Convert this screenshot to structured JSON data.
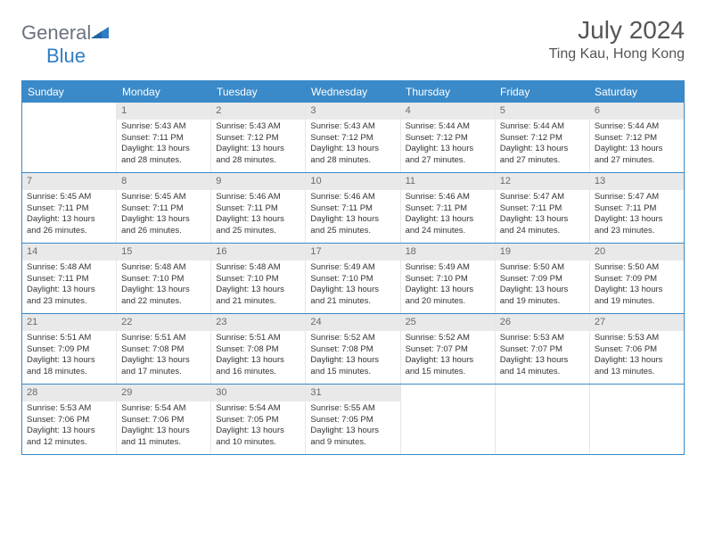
{
  "brand": {
    "text1": "General",
    "text2": "Blue"
  },
  "header": {
    "title": "July 2024",
    "location": "Ting Kau, Hong Kong"
  },
  "calendar": {
    "day_names": [
      "Sunday",
      "Monday",
      "Tuesday",
      "Wednesday",
      "Thursday",
      "Friday",
      "Saturday"
    ],
    "header_bg": "#3a8ac9",
    "header_fg": "#ffffff",
    "daynum_bg": "#e9e9e9",
    "weeks": [
      [
        {
          "day": "",
          "sunrise": "",
          "sunset": "",
          "daylight1": "",
          "daylight2": ""
        },
        {
          "day": "1",
          "sunrise": "Sunrise: 5:43 AM",
          "sunset": "Sunset: 7:11 PM",
          "daylight1": "Daylight: 13 hours",
          "daylight2": "and 28 minutes."
        },
        {
          "day": "2",
          "sunrise": "Sunrise: 5:43 AM",
          "sunset": "Sunset: 7:12 PM",
          "daylight1": "Daylight: 13 hours",
          "daylight2": "and 28 minutes."
        },
        {
          "day": "3",
          "sunrise": "Sunrise: 5:43 AM",
          "sunset": "Sunset: 7:12 PM",
          "daylight1": "Daylight: 13 hours",
          "daylight2": "and 28 minutes."
        },
        {
          "day": "4",
          "sunrise": "Sunrise: 5:44 AM",
          "sunset": "Sunset: 7:12 PM",
          "daylight1": "Daylight: 13 hours",
          "daylight2": "and 27 minutes."
        },
        {
          "day": "5",
          "sunrise": "Sunrise: 5:44 AM",
          "sunset": "Sunset: 7:12 PM",
          "daylight1": "Daylight: 13 hours",
          "daylight2": "and 27 minutes."
        },
        {
          "day": "6",
          "sunrise": "Sunrise: 5:44 AM",
          "sunset": "Sunset: 7:12 PM",
          "daylight1": "Daylight: 13 hours",
          "daylight2": "and 27 minutes."
        }
      ],
      [
        {
          "day": "7",
          "sunrise": "Sunrise: 5:45 AM",
          "sunset": "Sunset: 7:11 PM",
          "daylight1": "Daylight: 13 hours",
          "daylight2": "and 26 minutes."
        },
        {
          "day": "8",
          "sunrise": "Sunrise: 5:45 AM",
          "sunset": "Sunset: 7:11 PM",
          "daylight1": "Daylight: 13 hours",
          "daylight2": "and 26 minutes."
        },
        {
          "day": "9",
          "sunrise": "Sunrise: 5:46 AM",
          "sunset": "Sunset: 7:11 PM",
          "daylight1": "Daylight: 13 hours",
          "daylight2": "and 25 minutes."
        },
        {
          "day": "10",
          "sunrise": "Sunrise: 5:46 AM",
          "sunset": "Sunset: 7:11 PM",
          "daylight1": "Daylight: 13 hours",
          "daylight2": "and 25 minutes."
        },
        {
          "day": "11",
          "sunrise": "Sunrise: 5:46 AM",
          "sunset": "Sunset: 7:11 PM",
          "daylight1": "Daylight: 13 hours",
          "daylight2": "and 24 minutes."
        },
        {
          "day": "12",
          "sunrise": "Sunrise: 5:47 AM",
          "sunset": "Sunset: 7:11 PM",
          "daylight1": "Daylight: 13 hours",
          "daylight2": "and 24 minutes."
        },
        {
          "day": "13",
          "sunrise": "Sunrise: 5:47 AM",
          "sunset": "Sunset: 7:11 PM",
          "daylight1": "Daylight: 13 hours",
          "daylight2": "and 23 minutes."
        }
      ],
      [
        {
          "day": "14",
          "sunrise": "Sunrise: 5:48 AM",
          "sunset": "Sunset: 7:11 PM",
          "daylight1": "Daylight: 13 hours",
          "daylight2": "and 23 minutes."
        },
        {
          "day": "15",
          "sunrise": "Sunrise: 5:48 AM",
          "sunset": "Sunset: 7:10 PM",
          "daylight1": "Daylight: 13 hours",
          "daylight2": "and 22 minutes."
        },
        {
          "day": "16",
          "sunrise": "Sunrise: 5:48 AM",
          "sunset": "Sunset: 7:10 PM",
          "daylight1": "Daylight: 13 hours",
          "daylight2": "and 21 minutes."
        },
        {
          "day": "17",
          "sunrise": "Sunrise: 5:49 AM",
          "sunset": "Sunset: 7:10 PM",
          "daylight1": "Daylight: 13 hours",
          "daylight2": "and 21 minutes."
        },
        {
          "day": "18",
          "sunrise": "Sunrise: 5:49 AM",
          "sunset": "Sunset: 7:10 PM",
          "daylight1": "Daylight: 13 hours",
          "daylight2": "and 20 minutes."
        },
        {
          "day": "19",
          "sunrise": "Sunrise: 5:50 AM",
          "sunset": "Sunset: 7:09 PM",
          "daylight1": "Daylight: 13 hours",
          "daylight2": "and 19 minutes."
        },
        {
          "day": "20",
          "sunrise": "Sunrise: 5:50 AM",
          "sunset": "Sunset: 7:09 PM",
          "daylight1": "Daylight: 13 hours",
          "daylight2": "and 19 minutes."
        }
      ],
      [
        {
          "day": "21",
          "sunrise": "Sunrise: 5:51 AM",
          "sunset": "Sunset: 7:09 PM",
          "daylight1": "Daylight: 13 hours",
          "daylight2": "and 18 minutes."
        },
        {
          "day": "22",
          "sunrise": "Sunrise: 5:51 AM",
          "sunset": "Sunset: 7:08 PM",
          "daylight1": "Daylight: 13 hours",
          "daylight2": "and 17 minutes."
        },
        {
          "day": "23",
          "sunrise": "Sunrise: 5:51 AM",
          "sunset": "Sunset: 7:08 PM",
          "daylight1": "Daylight: 13 hours",
          "daylight2": "and 16 minutes."
        },
        {
          "day": "24",
          "sunrise": "Sunrise: 5:52 AM",
          "sunset": "Sunset: 7:08 PM",
          "daylight1": "Daylight: 13 hours",
          "daylight2": "and 15 minutes."
        },
        {
          "day": "25",
          "sunrise": "Sunrise: 5:52 AM",
          "sunset": "Sunset: 7:07 PM",
          "daylight1": "Daylight: 13 hours",
          "daylight2": "and 15 minutes."
        },
        {
          "day": "26",
          "sunrise": "Sunrise: 5:53 AM",
          "sunset": "Sunset: 7:07 PM",
          "daylight1": "Daylight: 13 hours",
          "daylight2": "and 14 minutes."
        },
        {
          "day": "27",
          "sunrise": "Sunrise: 5:53 AM",
          "sunset": "Sunset: 7:06 PM",
          "daylight1": "Daylight: 13 hours",
          "daylight2": "and 13 minutes."
        }
      ],
      [
        {
          "day": "28",
          "sunrise": "Sunrise: 5:53 AM",
          "sunset": "Sunset: 7:06 PM",
          "daylight1": "Daylight: 13 hours",
          "daylight2": "and 12 minutes."
        },
        {
          "day": "29",
          "sunrise": "Sunrise: 5:54 AM",
          "sunset": "Sunset: 7:06 PM",
          "daylight1": "Daylight: 13 hours",
          "daylight2": "and 11 minutes."
        },
        {
          "day": "30",
          "sunrise": "Sunrise: 5:54 AM",
          "sunset": "Sunset: 7:05 PM",
          "daylight1": "Daylight: 13 hours",
          "daylight2": "and 10 minutes."
        },
        {
          "day": "31",
          "sunrise": "Sunrise: 5:55 AM",
          "sunset": "Sunset: 7:05 PM",
          "daylight1": "Daylight: 13 hours",
          "daylight2": "and 9 minutes."
        },
        {
          "day": "",
          "sunrise": "",
          "sunset": "",
          "daylight1": "",
          "daylight2": ""
        },
        {
          "day": "",
          "sunrise": "",
          "sunset": "",
          "daylight1": "",
          "daylight2": ""
        },
        {
          "day": "",
          "sunrise": "",
          "sunset": "",
          "daylight1": "",
          "daylight2": ""
        }
      ]
    ]
  }
}
